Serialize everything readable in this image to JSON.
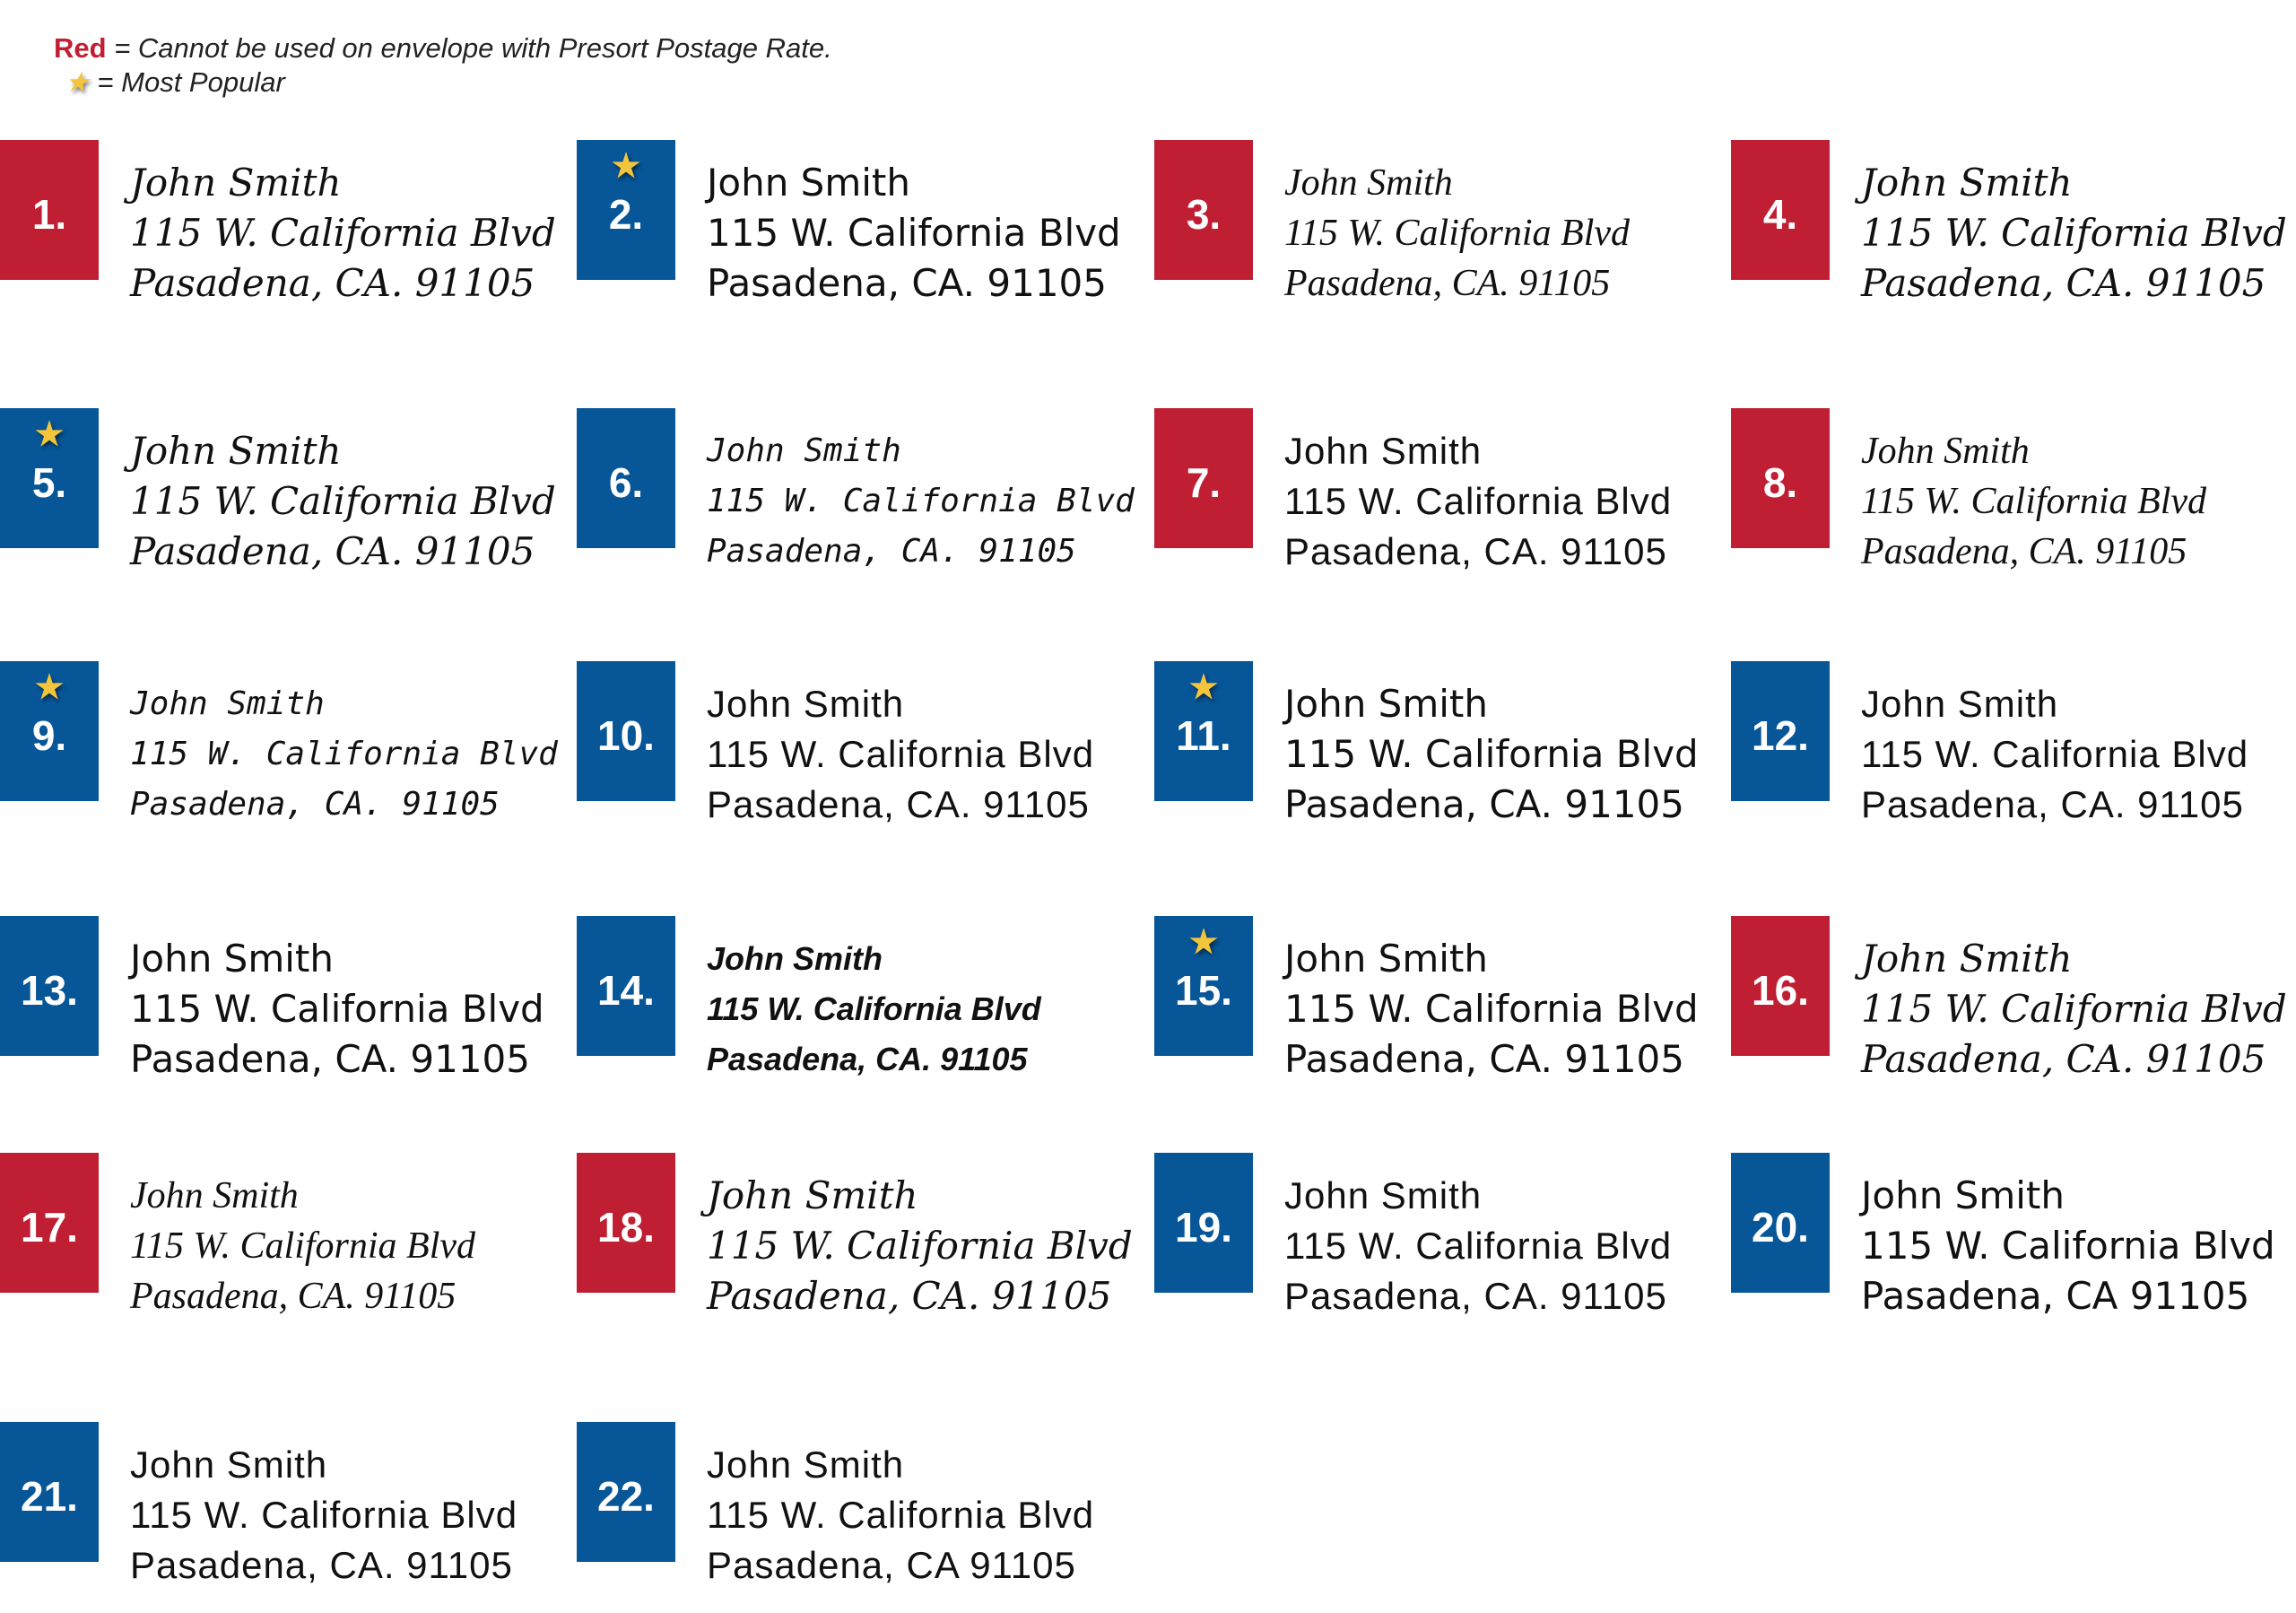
{
  "legend": {
    "red_word": "Red",
    "red_text": "= Cannot be used on envelope with Presort Postage Rate.",
    "star_icon": "star-icon",
    "star_text": "= Most Popular"
  },
  "colors": {
    "red": "#c01f33",
    "blue": "#075698",
    "star": "#f2c53d"
  },
  "samples": [
    {
      "number": "1.",
      "color": "red",
      "popular": false,
      "lines": [
        "John Smith",
        "115 W. California Blvd",
        "Pasadena, CA. 91105"
      ]
    },
    {
      "number": "2.",
      "color": "blue",
      "popular": true,
      "lines": [
        "John Smith",
        "115 W. California Blvd",
        "Pasadena, CA. 91105"
      ]
    },
    {
      "number": "3.",
      "color": "red",
      "popular": false,
      "lines": [
        "John Smith",
        "115 W. California Blvd",
        "Pasadena, CA. 91105"
      ]
    },
    {
      "number": "4.",
      "color": "red",
      "popular": false,
      "lines": [
        "John Smith",
        "115 W. California Blvd",
        "Pasadena, CA. 91105"
      ]
    },
    {
      "number": "5.",
      "color": "blue",
      "popular": true,
      "lines": [
        "John Smith",
        "115 W. California Blvd",
        "Pasadena, CA. 91105"
      ]
    },
    {
      "number": "6.",
      "color": "blue",
      "popular": false,
      "lines": [
        "John Smith",
        "115 W. California Blvd",
        "Pasadena, CA. 91105"
      ]
    },
    {
      "number": "7.",
      "color": "red",
      "popular": false,
      "lines": [
        "John Smith",
        "115 W. California Blvd",
        "Pasadena, CA. 91105"
      ]
    },
    {
      "number": "8.",
      "color": "red",
      "popular": false,
      "lines": [
        "John Smith",
        "115 W. California Blvd",
        "Pasadena, CA. 91105"
      ]
    },
    {
      "number": "9.",
      "color": "blue",
      "popular": true,
      "lines": [
        "John Smith",
        "115 W. California Blvd",
        "Pasadena, CA. 91105"
      ]
    },
    {
      "number": "10.",
      "color": "blue",
      "popular": false,
      "lines": [
        "John Smith",
        "115 W. California Blvd",
        "Pasadena, CA. 91105"
      ]
    },
    {
      "number": "11.",
      "color": "blue",
      "popular": true,
      "lines": [
        "John Smith",
        "115 W. California Blvd",
        "Pasadena, CA. 91105"
      ]
    },
    {
      "number": "12.",
      "color": "blue",
      "popular": false,
      "lines": [
        "John Smith",
        "115 W. California Blvd",
        "Pasadena, CA. 91105"
      ]
    },
    {
      "number": "13.",
      "color": "blue",
      "popular": false,
      "lines": [
        "John Smith",
        "115 W. California Blvd",
        "Pasadena, CA. 91105"
      ]
    },
    {
      "number": "14.",
      "color": "blue",
      "popular": false,
      "lines": [
        "John Smith",
        "115 W. California Blvd",
        "Pasadena, CA. 91105"
      ]
    },
    {
      "number": "15.",
      "color": "blue",
      "popular": true,
      "lines": [
        "John Smith",
        "115 W. California Blvd",
        "Pasadena, CA. 91105"
      ]
    },
    {
      "number": "16.",
      "color": "red",
      "popular": false,
      "lines": [
        "John Smith",
        "115 W. California Blvd",
        "Pasadena, CA. 91105"
      ]
    },
    {
      "number": "17.",
      "color": "red",
      "popular": false,
      "lines": [
        "John Smith",
        "115 W. California Blvd",
        "Pasadena, CA. 91105"
      ]
    },
    {
      "number": "18.",
      "color": "red",
      "popular": false,
      "lines": [
        "John Smith",
        "115 W. California Blvd",
        "Pasadena, CA. 91105"
      ]
    },
    {
      "number": "19.",
      "color": "blue",
      "popular": false,
      "lines": [
        "John Smith",
        "115 W. California Blvd",
        "Pasadena, CA. 91105"
      ]
    },
    {
      "number": "20.",
      "color": "blue",
      "popular": false,
      "lines": [
        "John Smith",
        "115 W. California Blvd",
        "Pasadena, CA 91105"
      ]
    },
    {
      "number": "21.",
      "color": "blue",
      "popular": false,
      "lines": [
        "John Smith",
        "115 W. California Blvd",
        "Pasadena, CA. 91105"
      ]
    },
    {
      "number": "22.",
      "color": "blue",
      "popular": false,
      "lines": [
        "John Smith",
        "115 W. California Blvd",
        "Pasadena, CA 91105"
      ]
    }
  ]
}
